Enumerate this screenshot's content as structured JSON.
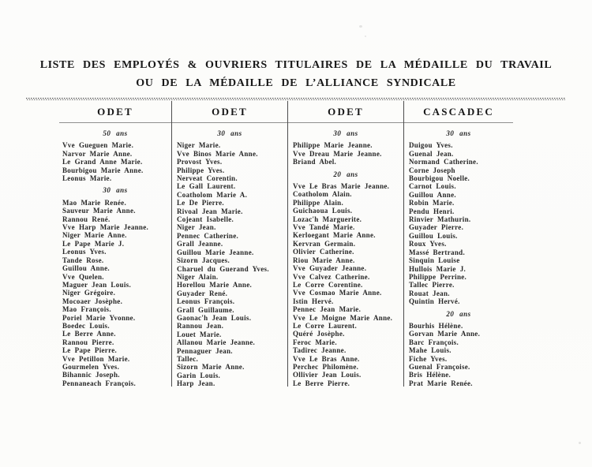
{
  "page": {
    "title_line1": "LISTE DES EMPLOYÉS & OUVRIERS TITULAIRES DE LA MÉDAILLE DU TRAVAIL",
    "title_line2": "OU DE LA MÉDAILLE DE L’ALLIANCE SYNDICALE"
  },
  "colors": {
    "paper": "#fcfcfb",
    "ink": "#262626",
    "rule_dark": "#4d4d4d",
    "rule_light": "#8f8f8f"
  },
  "table": {
    "columns": [
      {
        "header": "ODET",
        "groups": [
          {
            "label": "50 ans",
            "names": [
              "Vve Gueguen Marie.",
              "Narvor Marie Anne.",
              "Le Grand Anne Marie.",
              "Bourbigou Marie Anne.",
              "Leonus Marie."
            ]
          },
          {
            "label": "30 ans",
            "names": [
              "Mao Marie Renée.",
              "Sauveur Marie Anne.",
              "Rannou René.",
              "Vve Harp Marie Jeanne.",
              "Niger Marie Anne.",
              "Le Pape Marie J.",
              "Leonus Yves.",
              "Tande Rose.",
              "Guillou Anne.",
              "Vve Quelen.",
              "Maguer Jean Louis.",
              "Niger Grégoire.",
              "Mocoaer Josèphe.",
              "Mao François.",
              "Poriel Marie Yvonne.",
              "Boedec Louis.",
              "Le Berre Anne.",
              "Rannou Pierre.",
              "Le Pape Pierre.",
              "Vve Petillon Marie.",
              "Gourmelen Yves.",
              "Bihannic Joseph.",
              "Pennaneach François."
            ]
          }
        ]
      },
      {
        "header": "ODET",
        "groups": [
          {
            "label": "30 ans",
            "names": [
              "Niger Marie.",
              "Vve Binos Marie Anne.",
              "Provost Yves.",
              "Philippe Yves.",
              "Nerveat Corentin.",
              "Le Gall Laurent.",
              "Coatholom Marie A.",
              "Le De Pierre.",
              "Rivoal Jean Marie.",
              "Cojeant Isabelle.",
              "Niger Jean.",
              "Pennec Catherine.",
              "Grall Jeanne.",
              "Guillou Marie Jeanne.",
              "Sizorn Jacques.",
              "Charuel du Guerand Yves.",
              "Niger Alain.",
              "Horellou Marie Anne.",
              "Guyader René.",
              "Leonus François.",
              "Grall Guillaume.",
              "Gaonac'h Jean Louis.",
              "Rannou Jean.",
              "Louet Marie.",
              "Allanou Marie Jeanne.",
              "Pennaguer Jean.",
              "Tallec.",
              "Sizorn Marie Anne.",
              "Garin Louis.",
              "Harp Jean."
            ]
          }
        ]
      },
      {
        "header": "ODET",
        "groups": [
          {
            "label": "30 ans",
            "names": [
              "Philippe Marie Jeanne.",
              "Vve Dreau Marie Jeanne.",
              "Briand Abel."
            ]
          },
          {
            "label": "20 ans",
            "names": [
              "Vve Le Bras Marie Jeanne.",
              "Coatholom Alain.",
              "Philippe Alain.",
              "Guichaoua Louis.",
              "Lozac'h Marguerite.",
              "Vve Tandé Marie.",
              "Kerloegant Marie Anne.",
              "Kervran Germain.",
              "Olivier Catherine.",
              "Riou Marie Anne.",
              "Vve Guyader Jeanne.",
              "Vve Calvez Catherine.",
              "Le Corre Corentine.",
              "Vve Cosmao Marie Anne.",
              "Istin Hervé.",
              "Pennec Jean Marie.",
              "Vve Le Moigne Marie Anne.",
              "Le Corre Laurent.",
              "Quéré Josèphe.",
              "Feroc Marie.",
              "Tadirec Jeanne.",
              "Vve Le Bras Anne.",
              "Perchec Philomène.",
              "Ollivier Jean Louis.",
              "Le Berre Pierre."
            ]
          }
        ]
      },
      {
        "header": "CASCADEC",
        "groups": [
          {
            "label": "30 ans",
            "names": [
              "Duigou Yves.",
              "Guenal Jean.",
              "Normand Catherine.",
              "Corne Joseph",
              "Bourbigou Noelle.",
              "Carnot Louis.",
              "Guillou Anne.",
              "Robin Marie.",
              "Pendu Henri.",
              "Rinvier Mathurin.",
              "Guyader Pierre.",
              "Guillou Louis.",
              "Roux Yves.",
              "Massé Bertrand.",
              "Sinquin Louise",
              "Hullois Marie J.",
              "Philippe Perrine.",
              "Tallec Pierre.",
              "Rouat Jean.",
              "Quintin Hervé."
            ]
          },
          {
            "label": "20 ans",
            "names": [
              "Bourhis Hélène.",
              "Gorvan Marie Anne.",
              "Barc François.",
              "Mahe Louis.",
              "Fiche Yves.",
              "Guenal Françoise.",
              "Bris Hélène.",
              "Prat Marie Renée."
            ]
          }
        ]
      }
    ]
  }
}
